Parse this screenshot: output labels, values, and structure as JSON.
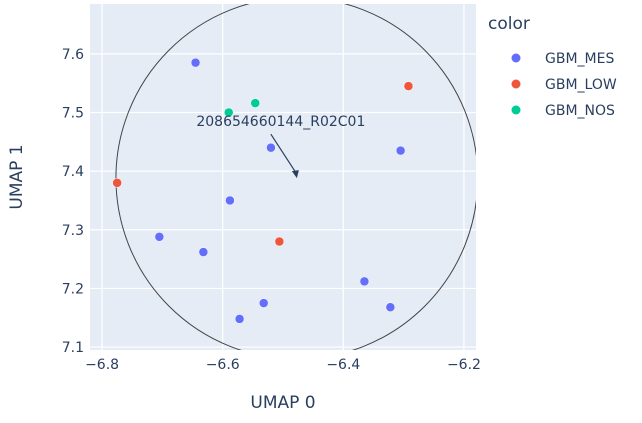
{
  "chart_data": {
    "type": "scatter",
    "xlabel": "UMAP 0",
    "ylabel": "UMAP 1",
    "xlim": [
      -6.82,
      -6.18
    ],
    "ylim": [
      7.095,
      7.685
    ],
    "x_ticks": [
      -6.8,
      -6.6,
      -6.4,
      -6.2
    ],
    "x_tick_labels": [
      "−6.8",
      "−6.6",
      "−6.4",
      "−6.2"
    ],
    "y_ticks": [
      7.1,
      7.2,
      7.3,
      7.4,
      7.5,
      7.6
    ],
    "y_tick_labels": [
      "7.1",
      "7.2",
      "7.3",
      "7.4",
      "7.5",
      "7.6"
    ],
    "grid": true,
    "legend_title": "color",
    "legend_position": "right",
    "series": [
      {
        "name": "GBM_MES",
        "color": "#636efa",
        "points": [
          {
            "x": -6.645,
            "y": 7.585
          },
          {
            "x": -6.52,
            "y": 7.44
          },
          {
            "x": -6.305,
            "y": 7.435
          },
          {
            "x": -6.588,
            "y": 7.35
          },
          {
            "x": -6.705,
            "y": 7.288
          },
          {
            "x": -6.632,
            "y": 7.262
          },
          {
            "x": -6.365,
            "y": 7.212
          },
          {
            "x": -6.532,
            "y": 7.175
          },
          {
            "x": -6.322,
            "y": 7.168
          },
          {
            "x": -6.572,
            "y": 7.148
          }
        ]
      },
      {
        "name": "GBM_LOW",
        "color": "#ef553b",
        "points": [
          {
            "x": -6.292,
            "y": 7.545
          },
          {
            "x": -6.775,
            "y": 7.38
          },
          {
            "x": -6.506,
            "y": 7.28
          }
        ]
      },
      {
        "name": "GBM_NOS",
        "color": "#00cc96",
        "points": [
          {
            "x": -6.59,
            "y": 7.5
          },
          {
            "x": -6.546,
            "y": 7.516
          }
        ]
      }
    ],
    "circle": {
      "cx": -6.477,
      "cy": 7.388,
      "r": 0.3
    },
    "annotation": {
      "text": "208654660144_R02C01",
      "point": {
        "x": -6.477,
        "y": 7.388
      }
    }
  }
}
